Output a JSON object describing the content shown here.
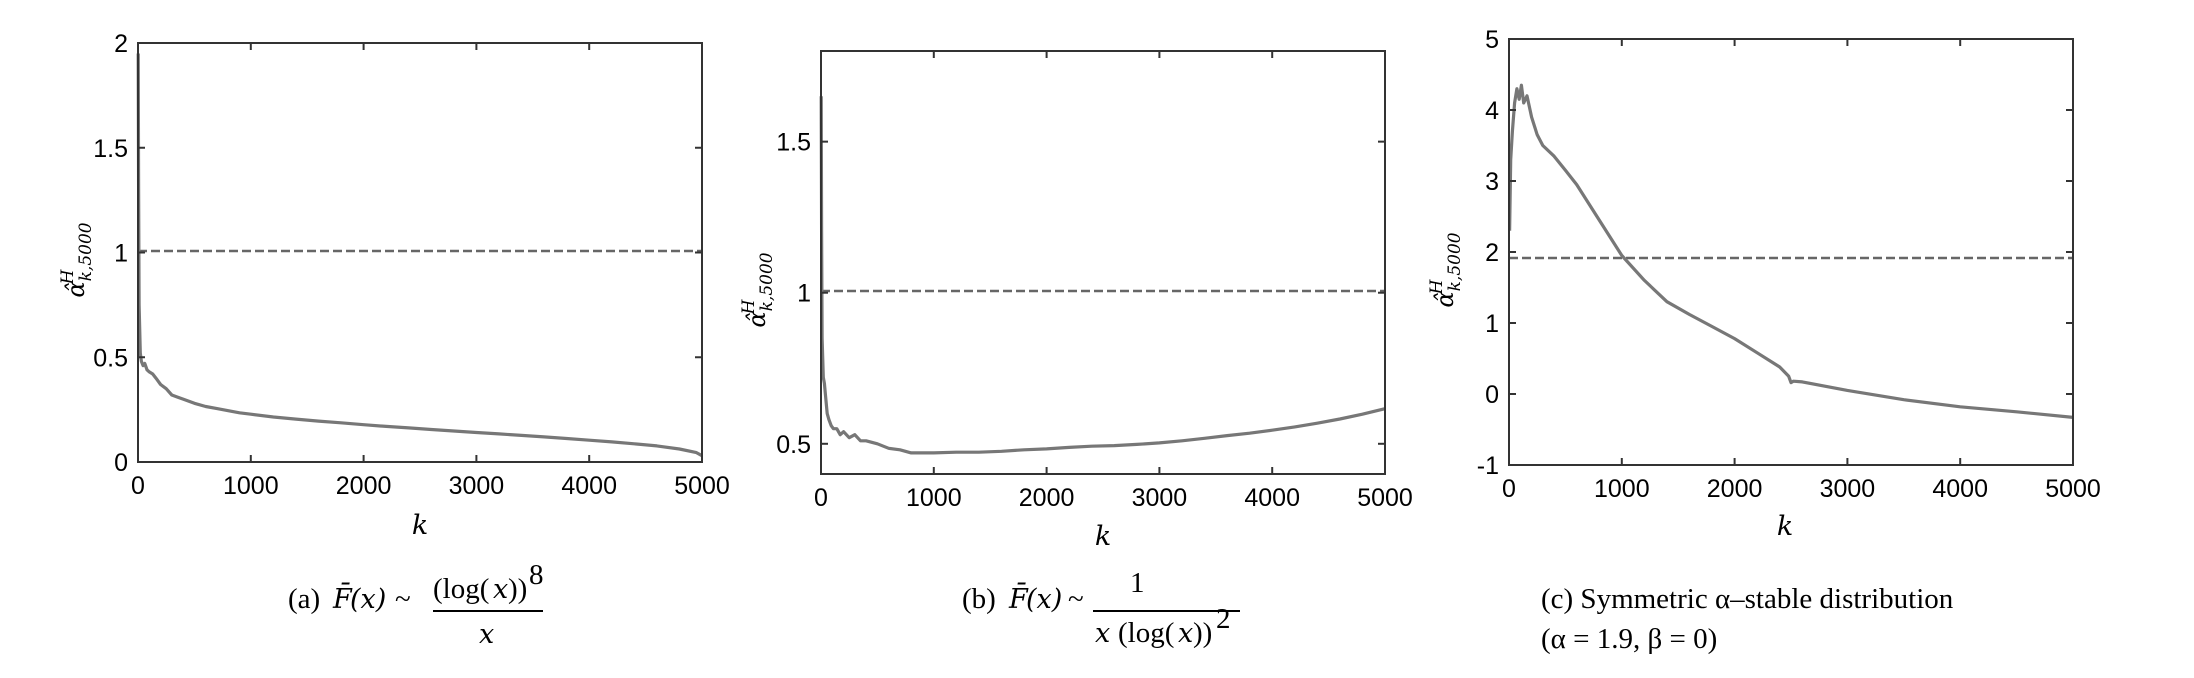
{
  "chart_data": [
    {
      "type": "line",
      "xlabel": "k",
      "ylabel": "α̂ k,5000 H",
      "xlim": [
        0,
        5000
      ],
      "ylim": [
        0,
        2
      ],
      "xticks": [
        "0",
        "1000",
        "2000",
        "3000",
        "4000",
        "5000"
      ],
      "yticks": [
        "0",
        "0.5",
        "1",
        "1.5",
        "2"
      ],
      "reference_line": 1,
      "caption": "(a) F̄(x) ~ (log(x))⁸ / x",
      "series": [
        {
          "x": [
            2,
            5,
            10,
            20,
            30,
            45,
            60,
            80,
            100,
            130,
            160,
            200,
            250,
            300,
            350,
            400,
            500,
            600,
            700,
            800,
            900,
            1000,
            1200,
            1400,
            1600,
            1800,
            2000,
            2200,
            2400,
            2600,
            2800,
            3000,
            3200,
            3400,
            3600,
            3800,
            4000,
            4200,
            4400,
            4600,
            4800,
            4950,
            5000
          ],
          "y": [
            1.95,
            1.3,
            0.75,
            0.52,
            0.48,
            0.46,
            0.47,
            0.44,
            0.43,
            0.42,
            0.4,
            0.37,
            0.35,
            0.32,
            0.31,
            0.3,
            0.28,
            0.265,
            0.255,
            0.245,
            0.235,
            0.228,
            0.215,
            0.205,
            0.195,
            0.187,
            0.178,
            0.17,
            0.163,
            0.155,
            0.148,
            0.141,
            0.134,
            0.127,
            0.12,
            0.112,
            0.104,
            0.096,
            0.087,
            0.077,
            0.062,
            0.045,
            0.03
          ]
        }
      ]
    },
    {
      "type": "line",
      "xlabel": "k",
      "ylabel": "α̂ k,5000 H",
      "xlim": [
        0,
        5000
      ],
      "ylim": [
        0.4,
        1.8
      ],
      "xticks": [
        "0",
        "1000",
        "2000",
        "3000",
        "4000",
        "5000"
      ],
      "yticks": [
        "0.5",
        "1",
        "1.5"
      ],
      "reference_line": 1,
      "caption": "(b) F̄(x) ~ 1 / (x (log(x))²)",
      "series": [
        {
          "x": [
            2,
            5,
            10,
            20,
            30,
            40,
            55,
            70,
            90,
            110,
            140,
            170,
            200,
            250,
            300,
            350,
            400,
            500,
            600,
            700,
            800,
            1000,
            1200,
            1400,
            1600,
            1800,
            2000,
            2200,
            2400,
            2600,
            2800,
            3000,
            3200,
            3400,
            3600,
            3800,
            4000,
            4200,
            4400,
            4600,
            4800,
            5000
          ],
          "y": [
            1.65,
            1.2,
            0.85,
            0.72,
            0.7,
            0.66,
            0.6,
            0.58,
            0.56,
            0.55,
            0.55,
            0.53,
            0.54,
            0.52,
            0.53,
            0.51,
            0.51,
            0.5,
            0.485,
            0.48,
            0.47,
            0.47,
            0.472,
            0.472,
            0.475,
            0.48,
            0.483,
            0.488,
            0.492,
            0.494,
            0.498,
            0.503,
            0.51,
            0.518,
            0.527,
            0.535,
            0.545,
            0.556,
            0.568,
            0.582,
            0.598,
            0.616
          ]
        }
      ]
    },
    {
      "type": "line",
      "xlabel": "k",
      "ylabel": "α̂ k,5000 H",
      "xlim": [
        0,
        5000
      ],
      "ylim": [
        -1,
        5
      ],
      "xticks": [
        "0",
        "1000",
        "2000",
        "3000",
        "4000",
        "5000"
      ],
      "yticks": [
        "-1",
        "0",
        "1",
        "2",
        "3",
        "4",
        "5"
      ],
      "reference_line": 1.9,
      "caption": "(c) Symmetric α–stable distribution",
      "caption_line2": "(α = 1.9, β = 0)",
      "series": [
        {
          "x": [
            5,
            15,
            30,
            50,
            70,
            90,
            110,
            130,
            160,
            200,
            250,
            300,
            400,
            500,
            600,
            800,
            1000,
            1200,
            1400,
            1600,
            1800,
            2000,
            2200,
            2400,
            2480,
            2500,
            2520,
            2600,
            3000,
            3500,
            4000,
            4500,
            5000
          ],
          "y": [
            2.3,
            3.3,
            3.7,
            4.1,
            4.3,
            4.15,
            4.35,
            4.1,
            4.2,
            3.9,
            3.65,
            3.5,
            3.35,
            3.15,
            2.95,
            2.45,
            1.95,
            1.6,
            1.3,
            1.12,
            0.95,
            0.78,
            0.58,
            0.38,
            0.25,
            0.16,
            0.18,
            0.17,
            0.05,
            -0.08,
            -0.18,
            -0.25,
            -0.33
          ]
        }
      ]
    }
  ]
}
